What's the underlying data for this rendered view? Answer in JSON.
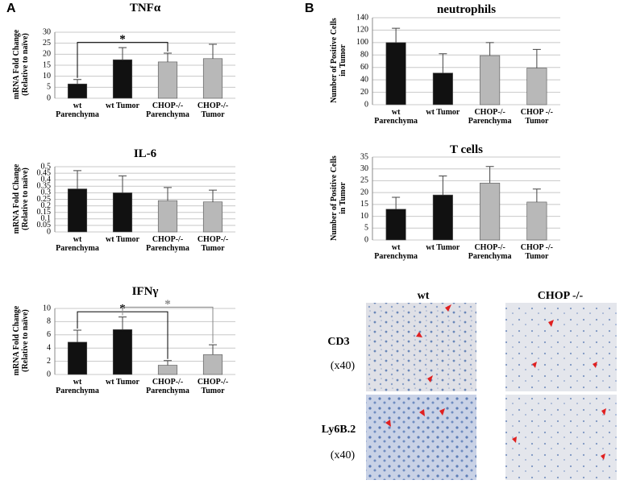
{
  "panel_labels": [
    "A",
    "B"
  ],
  "chart_data": [
    {
      "type": "bar",
      "title": "TNFα",
      "ylabel": "mRNA Fold Change (Relative to naïve)",
      "categories": [
        "wt Parenchyma",
        "wt Tumor",
        "CHOP-/- Parenchyma",
        "CHOP-/- Tumor"
      ],
      "values": [
        6.5,
        17.5,
        16.5,
        18
      ],
      "errors": [
        2,
        5.5,
        4,
        6.5
      ],
      "colors": [
        "#111111",
        "#111111",
        "#b8b8b8",
        "#b8b8b8"
      ],
      "ylim": [
        0,
        30
      ],
      "yticks": [
        0,
        5,
        10,
        15,
        20,
        25,
        30
      ],
      "grid": true,
      "brackets": [
        {
          "label": "*",
          "from": 0,
          "to": 2,
          "color": "#000000"
        }
      ]
    },
    {
      "type": "bar",
      "title": "IL-6",
      "ylabel": "mRNA Fold Change (Relative to naïve)",
      "categories": [
        "wt Parenchyma",
        "wt Tumor",
        "CHOP-/- Parenchyma",
        "CHOP-/- Tumor"
      ],
      "values": [
        0.33,
        0.3,
        0.24,
        0.23
      ],
      "errors": [
        0.14,
        0.13,
        0.1,
        0.09
      ],
      "colors": [
        "#111111",
        "#111111",
        "#b8b8b8",
        "#b8b8b8"
      ],
      "ylim": [
        0,
        0.5
      ],
      "yticks": [
        0,
        0.05,
        0.1,
        0.15,
        0.2,
        0.25,
        0.3,
        0.35,
        0.4,
        0.45,
        0.5
      ],
      "grid": true,
      "brackets": []
    },
    {
      "type": "bar",
      "title": "IFNγ",
      "ylabel": "mRNA Fold Change (Relative to naïve)",
      "categories": [
        "wt Parenchyma",
        "wt Tumor",
        "CHOP-/- Parenchyma",
        "CHOP-/- Tumor"
      ],
      "values": [
        4.9,
        6.8,
        1.4,
        3.0
      ],
      "errors": [
        1.8,
        1.9,
        0.7,
        1.5
      ],
      "colors": [
        "#111111",
        "#111111",
        "#b8b8b8",
        "#b8b8b8"
      ],
      "ylim": [
        0,
        10
      ],
      "yticks": [
        0,
        2,
        4,
        6,
        8,
        10
      ],
      "grid": true,
      "brackets": [
        {
          "label": "*",
          "from": 0,
          "to": 2,
          "color": "#000000"
        },
        {
          "label": "*",
          "from": 1,
          "to": 3,
          "color": "#888888"
        }
      ]
    },
    {
      "type": "bar",
      "title": "neutrophils",
      "ylabel": "Number of Positive Cells in Tumor",
      "categories": [
        "wt Parenchyma",
        "wt Tumor",
        "CHOP-/- Parenchyma",
        "CHOP -/- Tumor"
      ],
      "values": [
        100,
        51,
        79,
        59
      ],
      "errors": [
        23,
        31,
        21,
        30
      ],
      "colors": [
        "#111111",
        "#111111",
        "#b8b8b8",
        "#b8b8b8"
      ],
      "ylim": [
        0,
        140
      ],
      "yticks": [
        0,
        20,
        40,
        60,
        80,
        100,
        120,
        140
      ],
      "grid": true,
      "brackets": []
    },
    {
      "type": "bar",
      "title": "T cells",
      "ylabel": "Number of Positive Cells in Tumor",
      "categories": [
        "wt Parenchyma",
        "wt Tumor",
        "CHOP-/- Parenchyma",
        "CHOP -/- Tumor"
      ],
      "values": [
        13,
        19,
        24,
        16
      ],
      "errors": [
        5,
        8,
        7,
        5.5
      ],
      "colors": [
        "#111111",
        "#111111",
        "#b8b8b8",
        "#b8b8b8"
      ],
      "ylim": [
        0,
        35
      ],
      "yticks": [
        0,
        5,
        10,
        15,
        20,
        25,
        30,
        35
      ],
      "grid": true,
      "brackets": []
    }
  ],
  "micrographs": {
    "columns": [
      "wt",
      "CHOP -/-"
    ],
    "rows": [
      {
        "label": "CD3",
        "magnification": "(x40)"
      },
      {
        "label": "Ly6B.2",
        "magnification": "(x40)"
      }
    ]
  }
}
